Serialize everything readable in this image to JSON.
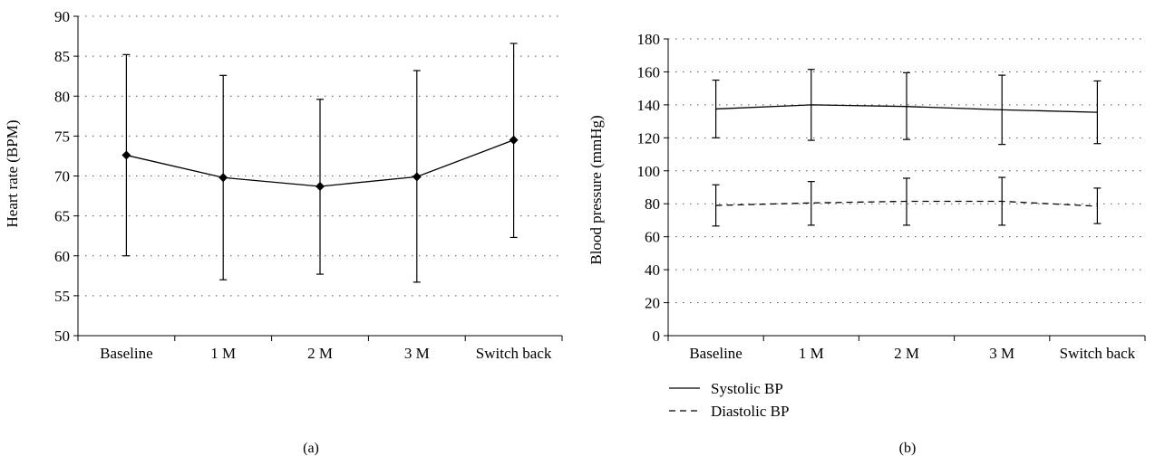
{
  "chart_data": [
    {
      "type": "line",
      "panel_label": "(a)",
      "categories": [
        "Baseline",
        "1 M",
        "2 M",
        "3 M",
        "Switch back"
      ],
      "ylabel": "Heart rate (BPM)",
      "ylim": [
        50,
        90
      ],
      "yticks": [
        50,
        55,
        60,
        65,
        70,
        75,
        80,
        85,
        90
      ],
      "grid": true,
      "series": [
        {
          "values": [
            72.6,
            69.8,
            68.7,
            69.9,
            74.5
          ],
          "upper": [
            85.2,
            82.6,
            79.6,
            83.2,
            86.6
          ],
          "lower": [
            60.0,
            57.0,
            57.7,
            56.7,
            62.3
          ],
          "line_style": "solid",
          "marker": "diamond"
        }
      ]
    },
    {
      "type": "line",
      "panel_label": "(b)",
      "categories": [
        "Baseline",
        "1 M",
        "2 M",
        "3 M",
        "Switch back"
      ],
      "ylabel": "Blood pressure (mmHg)",
      "ylim": [
        0,
        180
      ],
      "yticks": [
        0,
        20,
        40,
        60,
        80,
        100,
        120,
        140,
        160,
        180
      ],
      "grid": true,
      "legend_position": "bottom-left",
      "series": [
        {
          "name": "Systolic BP",
          "values": [
            137.5,
            140.0,
            139.0,
            137.0,
            135.5
          ],
          "upper": [
            155.0,
            161.5,
            159.5,
            158.0,
            154.5
          ],
          "lower": [
            120.0,
            118.5,
            119.0,
            116.0,
            116.5
          ],
          "line_style": "solid"
        },
        {
          "name": "Diastolic BP",
          "values": [
            79.0,
            80.5,
            81.5,
            81.5,
            78.5
          ],
          "upper": [
            91.5,
            93.5,
            95.5,
            96.0,
            89.5
          ],
          "lower": [
            66.5,
            67.0,
            67.0,
            67.0,
            68.0
          ],
          "line_style": "dashed"
        }
      ]
    }
  ]
}
